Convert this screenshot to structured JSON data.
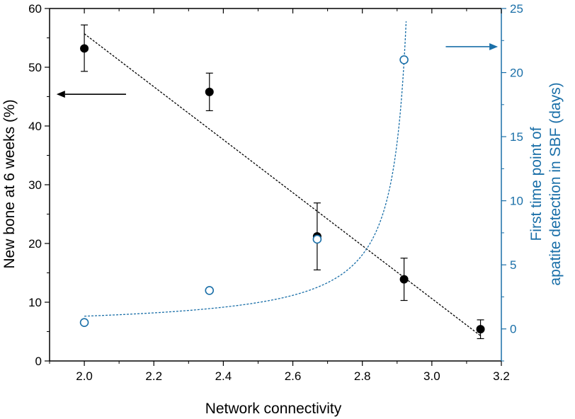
{
  "chart_data": {
    "type": "scatter",
    "title": "",
    "xlabel": "Network connectivity",
    "ylabel_left": "New bone at 6 weeks (%)",
    "ylabel_right": [
      "First time point of",
      "apatite detection in SBF (days)"
    ],
    "xlim": [
      1.9,
      3.2
    ],
    "ylim_left": [
      0,
      60
    ],
    "ylim_right": [
      -2.5,
      25
    ],
    "x_ticks": [
      "2.0",
      "2.2",
      "2.4",
      "2.6",
      "2.8",
      "3.0",
      "3.2"
    ],
    "y_left_ticks": [
      "0",
      "10",
      "20",
      "30",
      "40",
      "50",
      "60"
    ],
    "y_right_ticks": [
      "0",
      "5",
      "10",
      "15",
      "20",
      "25"
    ],
    "grid": false,
    "legend": "none",
    "series": [
      {
        "axis": "left",
        "marker": "filled-circle",
        "color": "#000000",
        "x": [
          2.0,
          2.36,
          2.67,
          2.92,
          3.14
        ],
        "y": [
          53.2,
          45.8,
          21.2,
          13.9,
          5.4
        ],
        "err_low": [
          49.3,
          42.6,
          15.5,
          10.3,
          3.8
        ],
        "err_high": [
          57.2,
          49.0,
          26.9,
          17.5,
          7.0
        ],
        "fit": {
          "style": "dotted-line",
          "x": [
            2.0,
            3.14
          ],
          "y": [
            55.7,
            4.3
          ]
        }
      },
      {
        "axis": "right",
        "marker": "open-circle",
        "color": "#1a6fa8",
        "x": [
          2.0,
          2.36,
          2.67,
          2.92
        ],
        "y": [
          0.5,
          3.0,
          7.0,
          21.0
        ],
        "fit": {
          "style": "dotted-curve",
          "form": "a/(c-x)",
          "a": 0.96,
          "c": 2.966
        }
      }
    ],
    "annotations": [
      {
        "type": "arrow",
        "direction": "left",
        "points_to_axis": "left",
        "color": "#000000",
        "at_x": 2.12,
        "at_y_left": 45.4,
        "length": 0.2
      },
      {
        "type": "arrow",
        "direction": "right",
        "points_to_axis": "right",
        "color": "#1a6fa8",
        "at_x": 3.04,
        "at_y_left": 53.5,
        "length": 0.15
      }
    ]
  }
}
